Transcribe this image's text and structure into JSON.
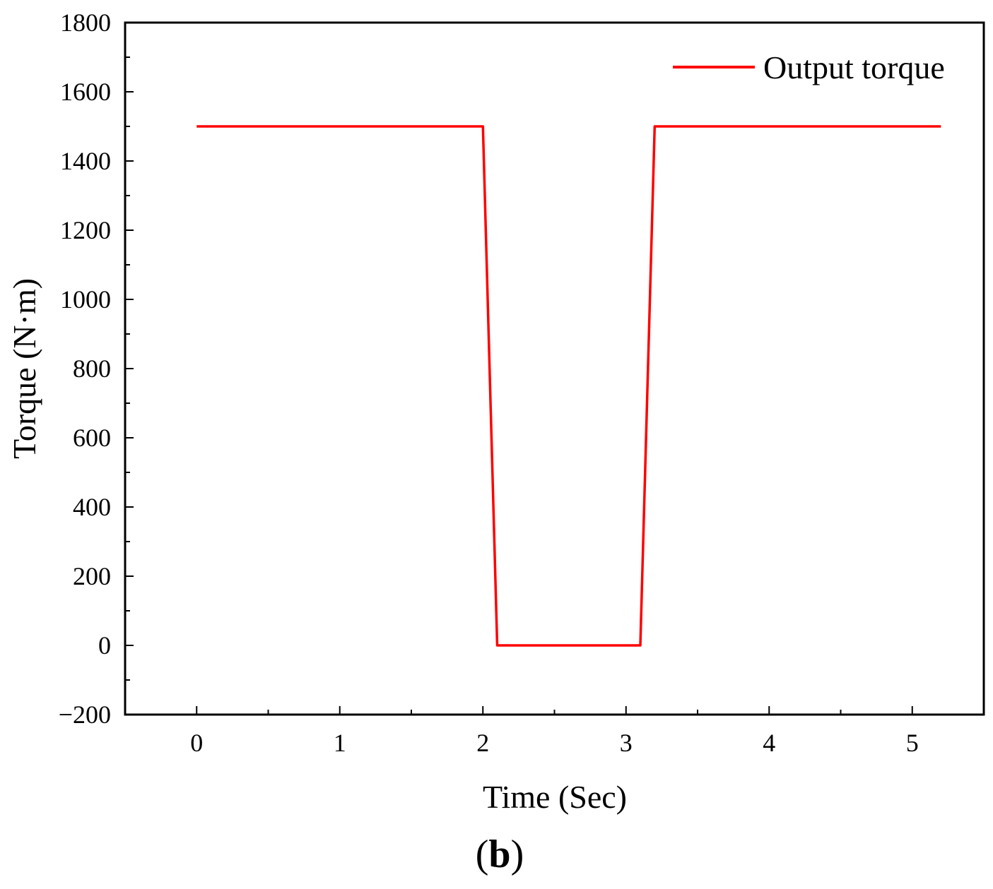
{
  "chart_data": {
    "type": "line",
    "title": "",
    "xlabel": "Time (Sec)",
    "ylabel": "Torque (N·m)",
    "xlim": [
      -0.5,
      5.5
    ],
    "ylim": [
      -200,
      1800
    ],
    "xticks": [
      0,
      1,
      2,
      3,
      4,
      5
    ],
    "yticks": [
      -200,
      0,
      200,
      400,
      600,
      800,
      1000,
      1200,
      1400,
      1600,
      1800
    ],
    "ytick_labels": [
      "−200",
      "0",
      "200",
      "400",
      "600",
      "800",
      "1000",
      "1200",
      "1400",
      "1600",
      "1800"
    ],
    "grid": false,
    "legend_position": "top-right",
    "series": [
      {
        "name": "Output torque",
        "color": "#ff0000",
        "x": [
          0,
          2.0,
          2.1,
          3.1,
          3.2,
          5.2
        ],
        "y": [
          1500,
          1500,
          0,
          0,
          1500,
          1500
        ]
      }
    ]
  },
  "panel_label": {
    "open": "(",
    "letter": "b",
    "close": ")"
  }
}
